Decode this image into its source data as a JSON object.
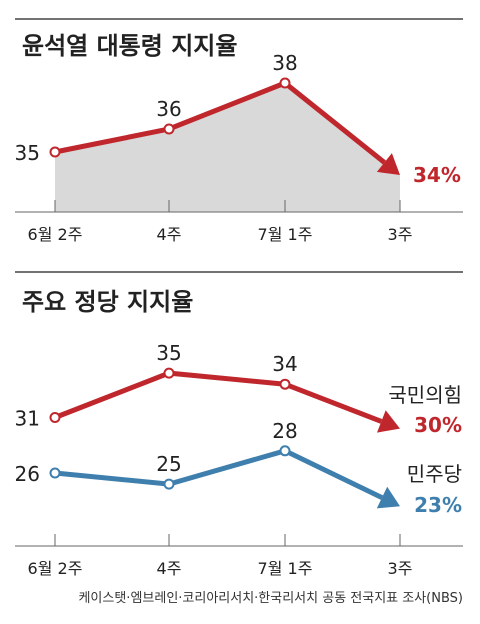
{
  "chart_data": [
    {
      "type": "line",
      "title": "윤석열 대통령 지지율",
      "categories": [
        "6월 2주",
        "4주",
        "7월 1주",
        "3주"
      ],
      "series": [
        {
          "values": [
            35,
            36,
            38,
            34
          ],
          "color": "#c0272d",
          "fill": "#d9d9d9",
          "last_label": "34%"
        }
      ],
      "value_labels": [
        "35",
        "36",
        "38"
      ],
      "ylim": [
        25,
        43
      ],
      "grid": false
    },
    {
      "type": "line",
      "title": "주요 정당 지지율",
      "categories": [
        "6월 2주",
        "4주",
        "7월 1주",
        "3주"
      ],
      "series": [
        {
          "name": "국민의힘",
          "values": [
            31,
            35,
            34,
            30
          ],
          "color": "#c0272d",
          "value_labels": [
            "31",
            "35",
            "34"
          ],
          "last_label": "30%"
        },
        {
          "name": "민주당",
          "values": [
            26,
            25,
            28,
            23
          ],
          "color": "#3f7fae",
          "value_labels": [
            "26",
            "25",
            "28"
          ],
          "last_label": "23%"
        }
      ],
      "ylim": [
        19,
        38
      ],
      "grid": false
    }
  ],
  "source": "케이스탯·엠브레인·코리아리서치·한국리서치 공동 전국지표 조사(NBS)"
}
